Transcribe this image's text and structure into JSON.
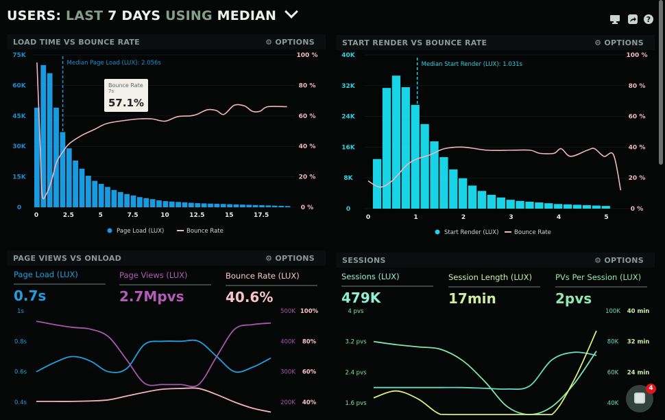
{
  "header": {
    "part1": "USERS:",
    "part2": "LAST",
    "part3": "7 DAYS",
    "part4": "USING",
    "part5": "MEDIAN",
    "icons": [
      "monitor-icon",
      "share-icon",
      "help-icon"
    ]
  },
  "panels": [
    {
      "title": "LOAD TIME VS BOUNCE RATE",
      "options": "⚙ OPTIONS"
    },
    {
      "title": "START RENDER VS BOUNCE RATE",
      "options": "⚙ OPTIONS"
    },
    {
      "title": "PAGE VIEWS VS ONLOAD",
      "options": "⚙ OPTIONS"
    },
    {
      "title": "SESSIONS",
      "options": "⚙ OPTIONS"
    }
  ],
  "tooltip": {
    "series": "Bounce Rate",
    "x": "7s",
    "value": "57.1%"
  },
  "metrics_pageviews": [
    {
      "label": "Page Load (LUX)",
      "value": "0.7s",
      "color": "#1ea0e0"
    },
    {
      "label": "Page Views (LUX)",
      "value": "2.7Mpvs",
      "color": "#b25cb8"
    },
    {
      "label": "Bounce Rate (LUX)",
      "value": "40.6%",
      "color": "#f6c4cc"
    }
  ],
  "metrics_sessions": [
    {
      "label": "Sessions (LUX)",
      "value": "479K",
      "color": "#8ff0d8"
    },
    {
      "label": "Session Length (LUX)",
      "value": "17min",
      "color": "#cdeea0"
    },
    {
      "label": "PVs Per Session (LUX)",
      "value": "2pvs",
      "color": "#8ee8b0"
    }
  ],
  "chat": {
    "badge": "4"
  },
  "chart_data": [
    {
      "type": "bar",
      "title": "LOAD TIME VS BOUNCE RATE",
      "bar_color": "#1a9be0",
      "line_color": "#f2b6c0",
      "x_ticks": [
        "0",
        "2.5",
        "5",
        "7.5",
        "10",
        "12.5",
        "15",
        "17.5"
      ],
      "x_tick_values": [
        0,
        2.5,
        5,
        7.5,
        10,
        12.5,
        15,
        17.5
      ],
      "y_left_ticks": [
        "0",
        "15K",
        "30K",
        "45K",
        "60K",
        "75K"
      ],
      "y_left_values": [
        0,
        15,
        30,
        45,
        60,
        75
      ],
      "y_right_ticks": [
        "0 %",
        "20 %",
        "40 %",
        "60 %",
        "80 %",
        "100 %"
      ],
      "y_right_values": [
        0,
        20,
        40,
        60,
        80,
        100
      ],
      "ylim_left": [
        0,
        75
      ],
      "ylim_right": [
        0,
        100
      ],
      "bin_width": 0.5,
      "bars": [
        49,
        70,
        66,
        49,
        37,
        29,
        23,
        19,
        15.5,
        13,
        11.5,
        10,
        8.5,
        7.5,
        6.5,
        5.8,
        5,
        4.5,
        4,
        3.4,
        3,
        2.8,
        2.6,
        2.4,
        2.2,
        2,
        1.9,
        1.8,
        1.7,
        1.6,
        1.5,
        1.4,
        1.3,
        1.2,
        1.1,
        1,
        0.9,
        0.8,
        0.7,
        0.6
      ],
      "line": [
        [
          0.05,
          95
        ],
        [
          0.3,
          40
        ],
        [
          0.45,
          8
        ],
        [
          0.8,
          9
        ],
        [
          1.2,
          18
        ],
        [
          1.6,
          30
        ],
        [
          2.2,
          38
        ],
        [
          2.6,
          42
        ],
        [
          3.5,
          47
        ],
        [
          4.5,
          51
        ],
        [
          5.5,
          55
        ],
        [
          7,
          57.1
        ],
        [
          8,
          58
        ],
        [
          9,
          58
        ],
        [
          10,
          56.5
        ],
        [
          11,
          59.5
        ],
        [
          12,
          60
        ],
        [
          12.5,
          61
        ],
        [
          13.3,
          64
        ],
        [
          14,
          63.5
        ],
        [
          14.6,
          61
        ],
        [
          15.4,
          67
        ],
        [
          16.2,
          66.5
        ],
        [
          16.8,
          63
        ],
        [
          17.4,
          63
        ],
        [
          18,
          66
        ],
        [
          19.5,
          66
        ]
      ],
      "median_label": "Median Page Load (LUX): 2.056s",
      "median_x": 2.056,
      "legend": [
        "Page Load (LUX)",
        "Bounce Rate"
      ]
    },
    {
      "type": "bar",
      "title": "START RENDER VS BOUNCE RATE",
      "bar_color": "#19d3e6",
      "line_color": "#f2b6c0",
      "x_ticks": [
        "0",
        "1",
        "2",
        "3",
        "4",
        "5"
      ],
      "x_tick_values": [
        0,
        1,
        2,
        3,
        4,
        5
      ],
      "y_left_ticks": [
        "0",
        "8K",
        "16K",
        "24K",
        "32K",
        "40K"
      ],
      "y_left_values": [
        0,
        8,
        16,
        24,
        32,
        40
      ],
      "y_right_ticks": [
        "0 %",
        "20 %",
        "40 %",
        "60 %",
        "80 %",
        "100 %"
      ],
      "y_right_values": [
        0,
        20,
        40,
        60,
        80,
        100
      ],
      "ylim_left": [
        0,
        40
      ],
      "ylim_right": [
        0,
        100
      ],
      "bin_width": 0.2,
      "bars": [
        12.9,
        31.4,
        34.6,
        31.6,
        27,
        22,
        17.5,
        13.4,
        10.2,
        7.9,
        6,
        4.6,
        3.6,
        2.9,
        2.3,
        2,
        1.8,
        1.6,
        1.4,
        1.2,
        1.1,
        1,
        0.9,
        0.8,
        0.7
      ],
      "line": [
        [
          0,
          18
        ],
        [
          0.25,
          14
        ],
        [
          0.5,
          18
        ],
        [
          0.8,
          28
        ],
        [
          1,
          32
        ],
        [
          1.3,
          35
        ],
        [
          1.6,
          39
        ],
        [
          2,
          40
        ],
        [
          2.5,
          38
        ],
        [
          3,
          38
        ],
        [
          3.4,
          38
        ],
        [
          3.6,
          36
        ],
        [
          3.9,
          36
        ],
        [
          4.05,
          39
        ],
        [
          4.25,
          34
        ],
        [
          4.6,
          38
        ],
        [
          4.75,
          39
        ],
        [
          4.95,
          34
        ],
        [
          5.15,
          35
        ],
        [
          5.3,
          12
        ]
      ],
      "median_label": "Median Start Render (LUX): 1.031s",
      "median_x": 1.031,
      "legend": [
        "Start Render (LUX)",
        "Bounce Rate"
      ]
    },
    {
      "type": "line",
      "title": "PAGE VIEWS VS ONLOAD",
      "y_left_ticks": [
        "1s",
        "0.8s",
        "0.6s",
        "0.4s"
      ],
      "y_left_values": [
        1,
        0.8,
        0.6,
        0.4
      ],
      "y_right1_ticks": [
        "500K",
        "400K",
        "300K",
        "200K"
      ],
      "y_right1_values": [
        500,
        400,
        300,
        200
      ],
      "y_right2_ticks": [
        "100%",
        "80%",
        "60%",
        "40%"
      ],
      "y_right2_values": [
        100,
        80,
        60,
        40
      ],
      "series": [
        {
          "axis": "left",
          "color": "#1ea0e0",
          "values": [
            0.6,
            0.66,
            0.7,
            0.67,
            0.6,
            0.62,
            0.78,
            0.8,
            0.8,
            0.8,
            0.7,
            0.6,
            0.63,
            0.69
          ]
        },
        {
          "axis": "right1",
          "color": "#a658ad",
          "values": [
            466,
            455,
            446,
            440,
            415,
            340,
            262,
            258,
            258,
            258,
            350,
            440,
            455,
            460
          ]
        },
        {
          "axis": "right2",
          "color": "#f5b3c0",
          "values": [
            40.5,
            40.5,
            40.5,
            40.8,
            41.5,
            44,
            46.5,
            48.5,
            49,
            49,
            45,
            40,
            36,
            33.5
          ]
        }
      ]
    },
    {
      "type": "line",
      "title": "SESSIONS",
      "y_left_ticks": [
        "4 pvs",
        "3.2 pvs",
        "2.4 pvs",
        "1.6 pvs"
      ],
      "y_left_values": [
        4,
        3.2,
        2.4,
        1.6
      ],
      "y_right1_ticks": [
        "100K",
        "80K",
        "60K",
        "40K"
      ],
      "y_right1_values": [
        100,
        80,
        60,
        40
      ],
      "y_right2_ticks": [
        "40 min",
        "32 min",
        "24 min"
      ],
      "y_right2_values": [
        40,
        32,
        24
      ],
      "series": [
        {
          "axis": "left",
          "color": "#7ee8b0",
          "values": [
            3.2,
            3.12,
            3.06,
            3.0,
            2.7,
            2.15,
            1.5,
            1.05,
            1.5,
            2.1,
            2.95
          ]
        },
        {
          "axis": "right1",
          "color": "#62e0c4",
          "values": [
            50,
            50,
            50,
            50,
            50,
            49.5,
            49,
            51,
            68,
            73,
            71
          ]
        },
        {
          "axis": "right2",
          "color": "#d6f07c",
          "values": [
            17.3,
            19.1,
            17,
            13,
            9,
            6,
            4,
            6,
            12,
            22,
            34.8
          ]
        }
      ]
    }
  ]
}
